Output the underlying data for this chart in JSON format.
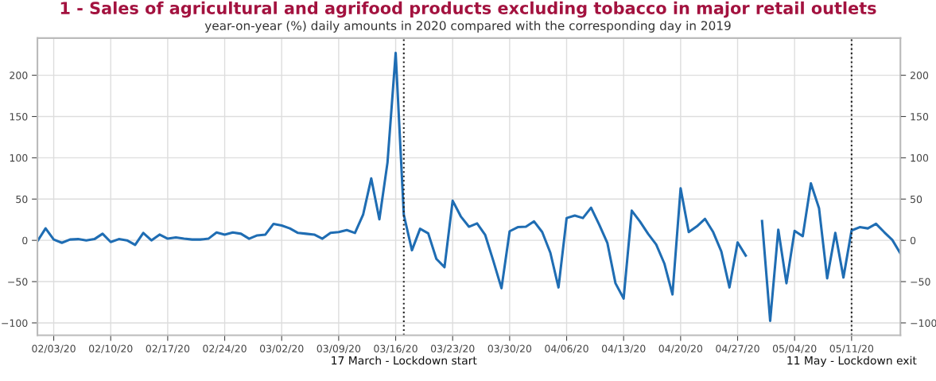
{
  "chart_data": {
    "type": "line",
    "title": "1 - Sales of agricultural and agrifood products excluding tobacco in major retail outlets",
    "subtitle": "year-on-year (%) daily amounts in 2020 compared with the corresponding day in 2019",
    "x": [
      "2020-02-01",
      "2020-02-02",
      "2020-02-03",
      "2020-02-04",
      "2020-02-05",
      "2020-02-06",
      "2020-02-07",
      "2020-02-08",
      "2020-02-09",
      "2020-02-10",
      "2020-02-11",
      "2020-02-12",
      "2020-02-13",
      "2020-02-14",
      "2020-02-15",
      "2020-02-16",
      "2020-02-17",
      "2020-02-18",
      "2020-02-19",
      "2020-02-20",
      "2020-02-21",
      "2020-02-22",
      "2020-02-23",
      "2020-02-24",
      "2020-02-25",
      "2020-02-26",
      "2020-02-27",
      "2020-02-28",
      "2020-02-29",
      "2020-03-01",
      "2020-03-02",
      "2020-03-03",
      "2020-03-04",
      "2020-03-05",
      "2020-03-06",
      "2020-03-07",
      "2020-03-08",
      "2020-03-09",
      "2020-03-10",
      "2020-03-11",
      "2020-03-12",
      "2020-03-13",
      "2020-03-14",
      "2020-03-15",
      "2020-03-16",
      "2020-03-17",
      "2020-03-18",
      "2020-03-19",
      "2020-03-20",
      "2020-03-21",
      "2020-03-22",
      "2020-03-23",
      "2020-03-24",
      "2020-03-25",
      "2020-03-26",
      "2020-03-27",
      "2020-03-28",
      "2020-03-29",
      "2020-03-30",
      "2020-03-31",
      "2020-04-01",
      "2020-04-02",
      "2020-04-03",
      "2020-04-04",
      "2020-04-05",
      "2020-04-06",
      "2020-04-07",
      "2020-04-08",
      "2020-04-09",
      "2020-04-10",
      "2020-04-11",
      "2020-04-12",
      "2020-04-13",
      "2020-04-14",
      "2020-04-15",
      "2020-04-16",
      "2020-04-17",
      "2020-04-18",
      "2020-04-19",
      "2020-04-20",
      "2020-04-21",
      "2020-04-22",
      "2020-04-23",
      "2020-04-24",
      "2020-04-25",
      "2020-04-26",
      "2020-04-27",
      "2020-04-28",
      "2020-04-29",
      "2020-04-30",
      "2020-05-01",
      "2020-05-02",
      "2020-05-03",
      "2020-05-04",
      "2020-05-05",
      "2020-05-06",
      "2020-05-07",
      "2020-05-08",
      "2020-05-09",
      "2020-05-10",
      "2020-05-11",
      "2020-05-12",
      "2020-05-13",
      "2020-05-14",
      "2020-05-15",
      "2020-05-16",
      "2020-05-17"
    ],
    "series": [
      {
        "color": "#1f6db3",
        "values": [
          -1,
          14.5,
          1,
          -3,
          1,
          1.5,
          0,
          1.5,
          8,
          -2,
          1.5,
          0,
          -5.5,
          9,
          0,
          7,
          2,
          3.5,
          2,
          1,
          1,
          2,
          9.5,
          7,
          9.5,
          8,
          2,
          6,
          7,
          20,
          18,
          14.5,
          9,
          8,
          7,
          2,
          9,
          10,
          12.5,
          9,
          31,
          75,
          25.5,
          94.5,
          227,
          31,
          -12,
          14,
          8.5,
          -22.5,
          -32.5,
          48,
          29,
          16.5,
          20.5,
          6.5,
          -25,
          -58,
          11,
          16,
          16.5,
          23,
          10,
          -15,
          -57,
          27,
          30,
          27,
          39.5,
          19,
          -3,
          -52,
          -70.5,
          36,
          23,
          8,
          -5,
          -28,
          -65.5,
          63,
          10,
          17,
          26,
          10,
          -13.5,
          -57,
          -2.5,
          -18.5,
          null,
          23.5,
          -97.5,
          13,
          -52,
          11.5,
          5,
          69,
          39,
          -46,
          9,
          -45,
          12,
          16,
          14.5,
          20,
          10,
          0.5,
          -16
        ]
      }
    ],
    "xlim": [
      "2020-02-01",
      "2020-05-17"
    ],
    "xticks": [
      {
        "value": "2020-02-03",
        "label": "02/03/20"
      },
      {
        "value": "2020-02-10",
        "label": "02/10/20"
      },
      {
        "value": "2020-02-17",
        "label": "02/17/20"
      },
      {
        "value": "2020-02-24",
        "label": "02/24/20"
      },
      {
        "value": "2020-03-02",
        "label": "03/02/20"
      },
      {
        "value": "2020-03-09",
        "label": "03/09/20"
      },
      {
        "value": "2020-03-16",
        "label": "03/16/20"
      },
      {
        "value": "2020-03-23",
        "label": "03/23/20"
      },
      {
        "value": "2020-03-30",
        "label": "03/30/20"
      },
      {
        "value": "2020-04-06",
        "label": "04/06/20"
      },
      {
        "value": "2020-04-13",
        "label": "04/13/20"
      },
      {
        "value": "2020-04-20",
        "label": "04/20/20"
      },
      {
        "value": "2020-04-27",
        "label": "04/27/20"
      },
      {
        "value": "2020-05-04",
        "label": "05/04/20"
      },
      {
        "value": "2020-05-11",
        "label": "05/11/20"
      }
    ],
    "ylim": [
      -115,
      245
    ],
    "yticks": [
      {
        "value": -100,
        "label": "−100"
      },
      {
        "value": -50,
        "label": "−50"
      },
      0,
      50,
      100,
      150,
      200
    ],
    "y2lim": [
      -115,
      245
    ],
    "y2ticks": [
      {
        "value": -100,
        "label": "−100"
      },
      {
        "value": -50,
        "label": "−50"
      },
      0,
      50,
      100,
      150,
      200
    ],
    "ref_lines": [
      {
        "axis": "x",
        "value": "2020-03-17",
        "label": "17 March - Lockdown start",
        "color": "#222222",
        "line_style": "dotted"
      },
      {
        "axis": "x",
        "value": "2020-05-11",
        "label": "11 May - Lockdown exit",
        "color": "#222222",
        "line_style": "dotted"
      }
    ],
    "grid": true,
    "line_style": "solid",
    "marker": "none"
  }
}
